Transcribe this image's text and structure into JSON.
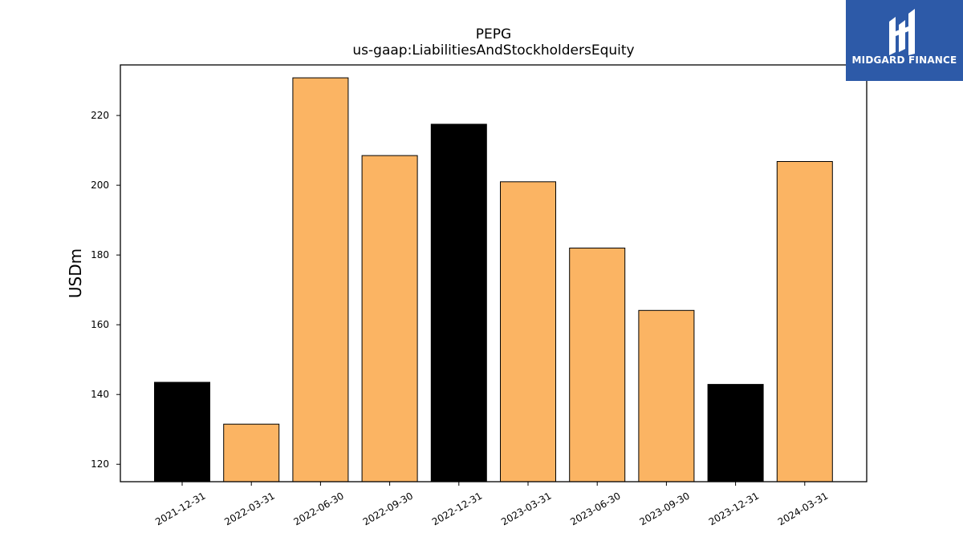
{
  "chart_data": {
    "type": "bar",
    "title": "PEPG",
    "subtitle": "us-gaap:LiabilitiesAndStockholdersEquity",
    "xlabel": "",
    "ylabel": "USDm",
    "categories": [
      "2021-12-31",
      "2022-03-31",
      "2022-06-30",
      "2022-09-30",
      "2022-12-31",
      "2023-03-31",
      "2023-06-30",
      "2023-09-30",
      "2023-12-31",
      "2024-03-31"
    ],
    "values": [
      143.5,
      131.5,
      230.8,
      208.5,
      217.5,
      201.0,
      182.0,
      164.1,
      142.9,
      206.8
    ],
    "bar_colors": [
      "#000000",
      "#fbb463",
      "#fbb463",
      "#fbb463",
      "#000000",
      "#fbb463",
      "#fbb463",
      "#fbb463",
      "#000000",
      "#fbb463"
    ],
    "ylim": [
      115,
      234.5
    ],
    "yticks": [
      120,
      140,
      160,
      180,
      200,
      220
    ],
    "grid": false,
    "legend": "none"
  },
  "logo": {
    "text": "MIDGARD FINANCE",
    "background": "#2d5aa8"
  }
}
